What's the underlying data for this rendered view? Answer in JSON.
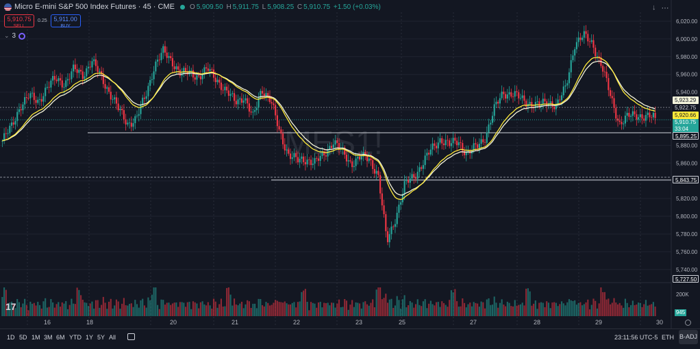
{
  "header": {
    "title": "Micro E-mini S&P 500 Index Futures · 45 · CME",
    "ohlc": {
      "o_label": "O",
      "o": "5,909.50",
      "h_label": "H",
      "h": "5,911.75",
      "l_label": "L",
      "l": "5,908.25",
      "c_label": "C",
      "c": "5,910.75",
      "change": "+1.50 (+0.03%)"
    }
  },
  "trade": {
    "sell_price": "5,910.75",
    "sell_label": "SELL",
    "spread": "0.25",
    "buy_price": "5,911.00",
    "buy_label": "BUY"
  },
  "indicators": {
    "count": "3"
  },
  "watermark": "MES1!",
  "price_axis": {
    "ticks": [
      "6,020.00",
      "6,000.00",
      "5,980.00",
      "5,960.00",
      "5,940.00",
      "5,920.00",
      "5,900.00",
      "5,880.00",
      "5,860.00",
      "5,840.00",
      "5,820.00",
      "5,800.00",
      "5,780.00",
      "5,760.00",
      "5,740.00"
    ],
    "vol_tick": "200K"
  },
  "price_tags": {
    "a": "5,923.29",
    "b": "5,922.75",
    "c": "5,920.66",
    "d": "5,910.75",
    "d_timer": "33:04",
    "e": "5,895.25",
    "f": "5,843.75",
    "g": "5,727.50"
  },
  "volume_tag": "945",
  "time_axis": [
    "16",
    "18",
    "20",
    "21",
    "22",
    "23",
    "25",
    "27",
    "28",
    "29",
    "30"
  ],
  "bottom": {
    "timeframes": [
      "1D",
      "5D",
      "1M",
      "3M",
      "6M",
      "YTD",
      "1Y",
      "5Y",
      "All"
    ],
    "clock": "23:11:56 UTC-5",
    "session": "ETH",
    "adjust": "B-ADJ"
  },
  "colors": {
    "up": "#26a69a",
    "down": "#f23645",
    "ma_fast": "#ffeb3b",
    "ma_slow": "#f5f5dc",
    "bg": "#131722",
    "grid": "#2a2e39"
  },
  "chart_data": {
    "type": "candlestick",
    "title": "MES1!",
    "close_path": [
      5885,
      5900,
      5925,
      5935,
      5930,
      5945,
      5955,
      5950,
      5965,
      5960,
      5975,
      5958,
      5940,
      5920,
      5905,
      5910,
      5935,
      5970,
      5985,
      5975,
      5960,
      5962,
      5958,
      5965,
      5955,
      5940,
      5930,
      5935,
      5910,
      5945,
      5930,
      5895,
      5870,
      5862,
      5865,
      5860,
      5870,
      5885,
      5872,
      5860,
      5866,
      5865,
      5848,
      5770,
      5800,
      5835,
      5845,
      5860,
      5875,
      5888,
      5880,
      5885,
      5870,
      5878,
      5890,
      5920,
      5940,
      5938,
      5932,
      5928,
      5924,
      5930,
      5925,
      5945,
      5995,
      6003,
      5995,
      5970,
      5935,
      5905,
      5912,
      5915,
      5912,
      5910.75
    ],
    "ylim": [
      5727.5,
      6030
    ],
    "ma_fast_last": "5,920.66",
    "ma_slow_last": "5,923.29"
  }
}
